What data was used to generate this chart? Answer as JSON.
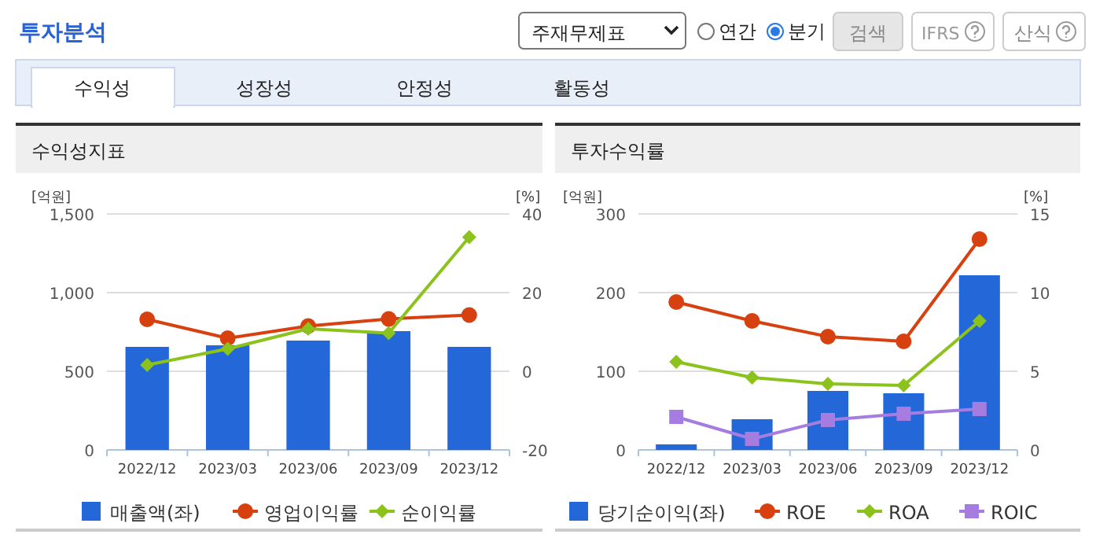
{
  "chart_data": [
    {
      "type": "other",
      "title": "투자분석",
      "annotations": [
        "주재무제표",
        "연간",
        "분기",
        "검색",
        "IFRS",
        "산식",
        "수익성",
        "성장성",
        "안정성",
        "활동성"
      ]
    },
    {
      "type": "bar",
      "title": "수익성지표",
      "ylabel": "[억원]",
      "y2label": "[%]",
      "categories": [
        "2022/12",
        "2023/03",
        "2023/06",
        "2023/09",
        "2023/12"
      ],
      "series": [
        {
          "name": "매출액(좌)",
          "type": "bar",
          "color": "#2467d9",
          "values": [
            655,
            665,
            695,
            755,
            655
          ]
        },
        {
          "name": "영업이익률",
          "type": "line",
          "axis": "y2",
          "marker": "circle",
          "color": "#d7400f",
          "values": [
            13.2,
            8.4,
            11.5,
            13.3,
            14.3
          ]
        },
        {
          "name": "순이익률",
          "type": "line",
          "axis": "y2",
          "marker": "diamond",
          "color": "#8bc21c",
          "values": [
            1.6,
            5.7,
            10.8,
            9.7,
            34.1
          ]
        }
      ],
      "ylim": [
        0,
        1500
      ],
      "yticks": [
        0,
        {
          "value": 500,
          "label": "500"
        },
        {
          "value": 1000,
          "label": "1,000"
        },
        {
          "value": 1500,
          "label": "1,500"
        }
      ],
      "y2lim": [
        -20,
        40
      ],
      "y2ticks": [
        -20,
        0,
        20,
        40
      ],
      "grid": "y",
      "legend": "bottom"
    },
    {
      "type": "bar",
      "title": "투자수익률",
      "ylabel": "[억원]",
      "y2label": "[%]",
      "categories": [
        "2022/12",
        "2023/03",
        "2023/06",
        "2023/09",
        "2023/12"
      ],
      "series": [
        {
          "name": "당기순이익(좌)",
          "type": "bar",
          "color": "#2467d9",
          "values": [
            7,
            39,
            75,
            72,
            222
          ]
        },
        {
          "name": "ROE",
          "type": "line",
          "axis": "y2",
          "marker": "circle",
          "color": "#d7400f",
          "values": [
            9.4,
            8.2,
            7.2,
            6.9,
            13.4
          ]
        },
        {
          "name": "ROA",
          "type": "line",
          "axis": "y2",
          "marker": "diamond",
          "color": "#8bc21c",
          "values": [
            5.6,
            4.6,
            4.2,
            4.1,
            8.2
          ]
        },
        {
          "name": "ROIC",
          "type": "line",
          "axis": "y2",
          "marker": "square",
          "color": "#a57de0",
          "values": [
            2.1,
            0.7,
            1.9,
            2.3,
            2.6
          ]
        }
      ],
      "ylim": [
        0,
        300
      ],
      "yticks": [
        0,
        100,
        200,
        300
      ],
      "y2lim": [
        0,
        15
      ],
      "y2ticks": [
        0,
        5,
        10,
        15
      ],
      "grid": "y",
      "legend": "bottom"
    }
  ]
}
